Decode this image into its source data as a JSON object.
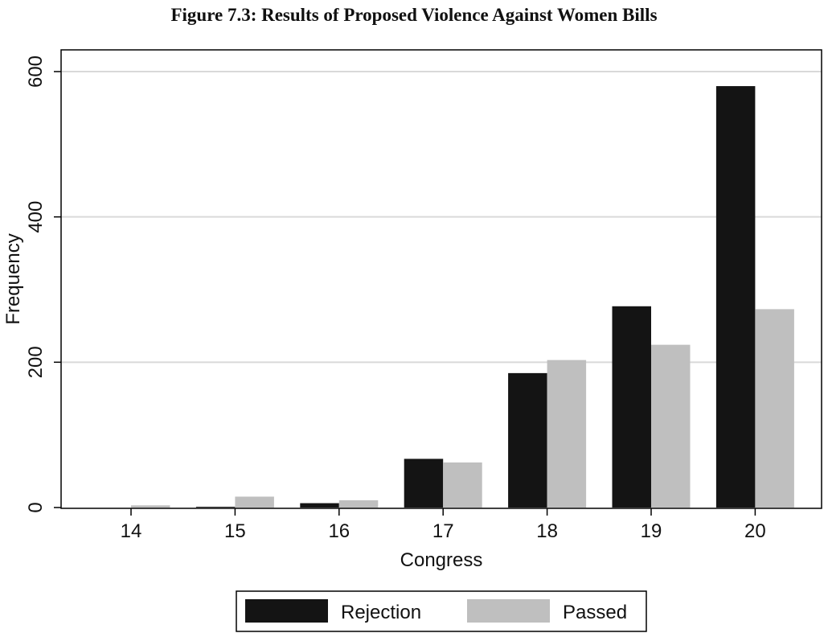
{
  "title": "Figure 7.3: Results of Proposed Violence Against Women Bills",
  "chart_data": {
    "type": "bar",
    "categories": [
      "14",
      "15",
      "16",
      "17",
      "18",
      "19",
      "20"
    ],
    "series": [
      {
        "name": "Rejection",
        "color": "#141414",
        "values": [
          0,
          1,
          6,
          67,
          185,
          277,
          580
        ]
      },
      {
        "name": "Passed",
        "color": "#bfbfbf",
        "values": [
          3,
          15,
          10,
          62,
          203,
          224,
          273
        ]
      }
    ],
    "xlabel": "Congress",
    "ylabel": "Frequency",
    "ylim": [
      0,
      600
    ],
    "yticks": [
      0,
      200,
      400,
      600
    ],
    "grid": true,
    "legend_position": "bottom"
  }
}
